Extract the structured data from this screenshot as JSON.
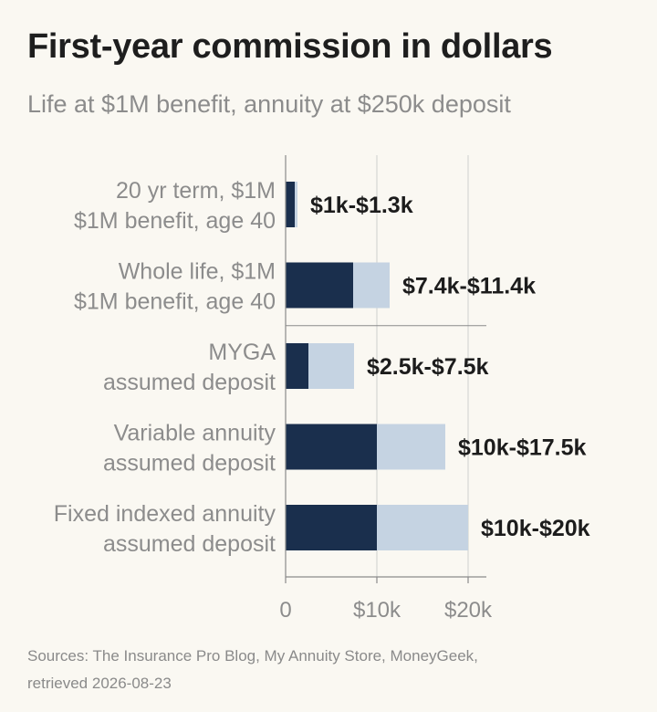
{
  "chart_data": {
    "type": "bar",
    "title": "First-year commission in dollars",
    "subtitle": "Life at $1M benefit, annuity at $250k deposit",
    "categories": [
      [
        "20 yr term, $1M",
        "$1M benefit, age 40"
      ],
      [
        "Whole life, $1M",
        "$1M benefit, age 40"
      ],
      [
        "MYGA",
        "assumed deposit"
      ],
      [
        "Variable annuity",
        "assumed deposit"
      ],
      [
        "Fixed indexed annuity",
        "assumed deposit"
      ]
    ],
    "ranges": [
      {
        "low": 1000,
        "high": 1300,
        "label": "$1k-$1.3k"
      },
      {
        "low": 7400,
        "high": 11400,
        "label": "$7.4k-$11.4k"
      },
      {
        "low": 2500,
        "high": 7500,
        "label": "$2.5k-$7.5k"
      },
      {
        "low": 10000,
        "high": 17500,
        "label": "$10k-$17.5k"
      },
      {
        "low": 10000,
        "high": 20000,
        "label": "$10k-$20k"
      }
    ],
    "xlim": [
      0,
      22000
    ],
    "xticks": [
      0,
      10000,
      20000
    ],
    "xtick_labels": [
      "0",
      "$10k",
      "$20k"
    ],
    "grid": true,
    "group_divider_after": 1,
    "colors": {
      "low": "#1a2f4d",
      "high": "#c5d3e2",
      "grid": "#cfcfcf",
      "axis": "#8a8a8a",
      "label": "#8c8c8c",
      "value": "#1c1c1c"
    }
  },
  "sources": [
    "Sources: The Insurance Pro Blog, My Annuity Store, MoneyGeek,",
    "retrieved 2026-08-23"
  ]
}
